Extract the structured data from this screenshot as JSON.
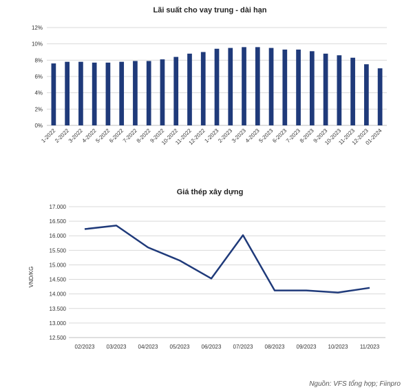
{
  "colors": {
    "series": "#1f3a7a",
    "grid": "#d9d9d9",
    "axis": "#bfbfbf"
  },
  "chart_data": [
    {
      "type": "bar",
      "title": "Lãi suất cho vay trung - dài hạn",
      "categories": [
        "1-2022",
        "2-2022",
        "3-2022",
        "4-2022",
        "5-2022",
        "6-2022",
        "7-2022",
        "8-2022",
        "9-2022",
        "10-2022",
        "11-2022",
        "12-2022",
        "1-2023",
        "2-2023",
        "3-2023",
        "4-2023",
        "5-2023",
        "6-2023",
        "7-2023",
        "8-2023",
        "9-2023",
        "10-2023",
        "11-2023",
        "12-2023",
        "01-2024"
      ],
      "values": [
        7.6,
        7.8,
        7.8,
        7.7,
        7.7,
        7.8,
        7.9,
        7.9,
        8.1,
        8.4,
        8.8,
        9.0,
        9.4,
        9.5,
        9.6,
        9.6,
        9.5,
        9.3,
        9.3,
        9.1,
        8.8,
        8.6,
        8.3,
        7.5,
        7.0
      ],
      "ylim": [
        0,
        12
      ],
      "yticks": [
        0,
        2,
        4,
        6,
        8,
        10,
        12
      ],
      "ytick_labels": [
        "0%",
        "2%",
        "4%",
        "6%",
        "8%",
        "10%",
        "12%"
      ],
      "xlabel": "",
      "ylabel": "",
      "grid": true
    },
    {
      "type": "line",
      "title": "Giá thép xây dựng",
      "categories": [
        "02/2023",
        "03/2023",
        "04/2023",
        "05/2023",
        "06/2023",
        "07/2023",
        "08/2023",
        "09/2023",
        "10/2023",
        "11/2023"
      ],
      "values": [
        16230,
        16350,
        15600,
        15150,
        14530,
        16020,
        14120,
        14120,
        14050,
        14210
      ],
      "ylim": [
        12500,
        17000
      ],
      "yticks": [
        12500,
        13000,
        13500,
        14000,
        14500,
        15000,
        15500,
        16000,
        16500,
        17000
      ],
      "ytick_labels": [
        "12.500",
        "13.000",
        "13.500",
        "14.000",
        "14.500",
        "15.000",
        "15.500",
        "16.000",
        "16.500",
        "17.000"
      ],
      "xlabel": "",
      "ylabel": "VND/KG",
      "grid": true
    }
  ],
  "source": "Nguồn: VFS tổng hợp; Fiinpro"
}
